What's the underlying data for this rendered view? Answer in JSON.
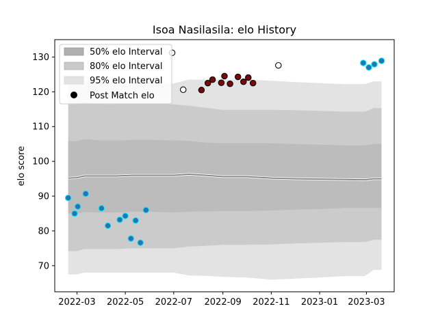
{
  "chart_data": {
    "type": "line",
    "title": "Isoa Nasilasila: elo History",
    "xlabel": "",
    "ylabel": "elo score",
    "xlim": [
      "2022-02-01",
      "2023-04-05"
    ],
    "ylim": [
      62.5,
      135
    ],
    "x_ticks": [
      "2022-03",
      "2022-05",
      "2022-07",
      "2022-09",
      "2022-11",
      "2023-01",
      "2023-03"
    ],
    "y_ticks": [
      70,
      80,
      90,
      100,
      110,
      120,
      130
    ],
    "grid": false,
    "legend": {
      "placement": "top-left",
      "entries": [
        "50% elo Interval",
        "80% elo Interval",
        "95% elo Interval",
        "Post Match elo"
      ]
    },
    "bands_x": [
      "2022-02-18",
      "2022-03-01",
      "2022-03-10",
      "2022-04-01",
      "2022-04-20",
      "2022-05-10",
      "2022-06-01",
      "2022-07-01",
      "2022-07-20",
      "2022-08-10",
      "2022-09-01",
      "2022-10-01",
      "2022-11-01",
      "2022-12-01",
      "2023-01-01",
      "2023-02-01",
      "2023-02-27",
      "2023-03-10",
      "2023-03-20"
    ],
    "mean_elo": [
      95.2,
      95.3,
      95.8,
      95.8,
      95.8,
      96.0,
      96.0,
      96.0,
      96.3,
      96.0,
      95.6,
      95.6,
      95.2,
      95.0,
      94.9,
      94.8,
      94.7,
      95.0,
      95.0
    ],
    "band_50_upper": [
      105.8,
      105.8,
      106.4,
      106.0,
      106.0,
      106.2,
      106.2,
      106.0,
      105.9,
      105.4,
      105.2,
      105.2,
      105.2,
      105.0,
      104.8,
      104.6,
      104.6,
      105.0,
      105.0
    ],
    "band_50_lower": [
      85.0,
      85.0,
      85.4,
      85.3,
      85.3,
      85.5,
      85.5,
      85.3,
      85.5,
      85.6,
      85.7,
      85.7,
      85.9,
      86.1,
      86.3,
      86.6,
      86.6,
      86.6,
      86.6
    ],
    "band_80_upper": [
      116.4,
      116.4,
      117.0,
      116.4,
      116.4,
      116.6,
      116.6,
      116.4,
      116.0,
      115.4,
      114.8,
      114.8,
      114.8,
      114.7,
      114.5,
      114.3,
      114.3,
      115.3,
      115.3
    ],
    "band_80_lower": [
      74.2,
      74.2,
      74.8,
      74.8,
      74.8,
      75.0,
      75.0,
      75.0,
      75.5,
      75.7,
      76.0,
      76.0,
      76.1,
      76.4,
      76.6,
      76.8,
      76.8,
      77.5,
      77.5
    ],
    "band_95_upper": [
      122.5,
      122.5,
      123.2,
      122.5,
      122.5,
      122.5,
      122.5,
      122.4,
      123.5,
      123.5,
      123.5,
      123.5,
      123.2,
      122.8,
      122.5,
      122.2,
      122.2,
      123.0,
      123.0
    ],
    "band_95_lower": [
      67.5,
      67.5,
      68.0,
      68.0,
      68.0,
      68.0,
      68.0,
      68.0,
      67.2,
      67.1,
      66.8,
      66.6,
      66.0,
      66.3,
      66.6,
      67.0,
      67.0,
      68.8,
      68.8
    ],
    "point_groups": [
      {
        "fill": "#1f77b4",
        "edge": "#17e3f5",
        "x": [
          "2022-02-18",
          "2022-02-26",
          "2022-03-02",
          "2022-03-12",
          "2022-04-01",
          "2022-04-09",
          "2022-04-24",
          "2022-05-01",
          "2022-05-08",
          "2022-05-14",
          "2022-05-20",
          "2022-05-27"
        ],
        "y": [
          89.5,
          85.0,
          87.0,
          90.7,
          86.5,
          81.5,
          83.2,
          84.3,
          77.8,
          83.0,
          76.6,
          86.0
        ]
      },
      {
        "fill": "#7a0a0a",
        "edge": "#000000",
        "x": [
          "2022-08-05",
          "2022-08-13",
          "2022-08-19",
          "2022-08-30",
          "2022-09-03",
          "2022-09-10",
          "2022-09-20",
          "2022-09-27",
          "2022-10-03",
          "2022-10-09"
        ],
        "y": [
          120.5,
          122.5,
          123.5,
          122.6,
          124.5,
          122.3,
          124.3,
          122.9,
          124.1,
          122.5
        ]
      },
      {
        "fill": "#ffffff",
        "edge": "#000000",
        "x": [
          "2022-06-29",
          "2022-07-13",
          "2022-11-10"
        ],
        "y": [
          131.2,
          120.6,
          127.6
        ]
      },
      {
        "fill": "#1f77b4",
        "edge": "#17e3f5",
        "x": [
          "2023-02-25",
          "2023-03-04",
          "2023-03-11",
          "2023-03-20"
        ],
        "y": [
          128.3,
          127.0,
          127.9,
          128.9
        ]
      }
    ]
  }
}
